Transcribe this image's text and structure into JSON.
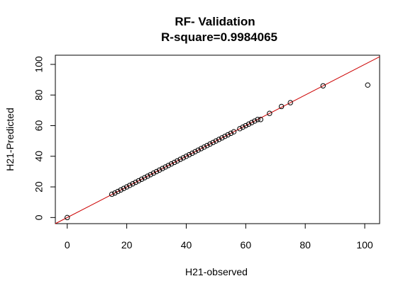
{
  "chart_data": {
    "type": "scatter",
    "title": "RF- Validation",
    "subtitle": "R-square=0.9984065",
    "xlabel": "H21-observed",
    "ylabel": "H21-Predicted",
    "xlim": [
      -4,
      105
    ],
    "ylim": [
      -4,
      106
    ],
    "xticks": [
      0,
      20,
      40,
      60,
      80,
      100
    ],
    "yticks": [
      0,
      20,
      40,
      60,
      80,
      100
    ],
    "xtick_labels": [
      "0",
      "20",
      "40",
      "60",
      "80",
      "100"
    ],
    "ytick_labels": [
      "0",
      "20",
      "40",
      "60",
      "80",
      "100"
    ],
    "grid": false,
    "reference_line": {
      "slope": 1,
      "intercept": 0,
      "color": "#cc0000"
    },
    "marker_color": "#000000",
    "x": [
      0,
      15,
      16,
      17,
      18,
      19,
      20,
      21,
      22,
      23,
      24,
      25,
      26,
      27,
      28,
      29,
      30,
      31,
      32,
      33,
      34,
      35,
      36,
      37,
      38,
      39,
      40,
      41,
      42,
      43,
      44,
      45,
      46,
      47,
      48,
      49,
      50,
      51,
      52,
      53,
      54,
      55,
      56,
      58,
      59,
      60,
      61,
      62,
      63,
      64,
      65,
      68,
      72,
      75,
      86,
      101
    ],
    "y": [
      0,
      15.2,
      16,
      17,
      18,
      19,
      20,
      21,
      22,
      23,
      24,
      25,
      26,
      27,
      28,
      29,
      30,
      31,
      32,
      33,
      34,
      35,
      36,
      37,
      38,
      39,
      40,
      41,
      42,
      43,
      44,
      45,
      46,
      47,
      48,
      49,
      50,
      51,
      52,
      53,
      54,
      55,
      56,
      58,
      59,
      60,
      61,
      62,
      63,
      64,
      64,
      68,
      72.5,
      75,
      86,
      86.5
    ]
  }
}
